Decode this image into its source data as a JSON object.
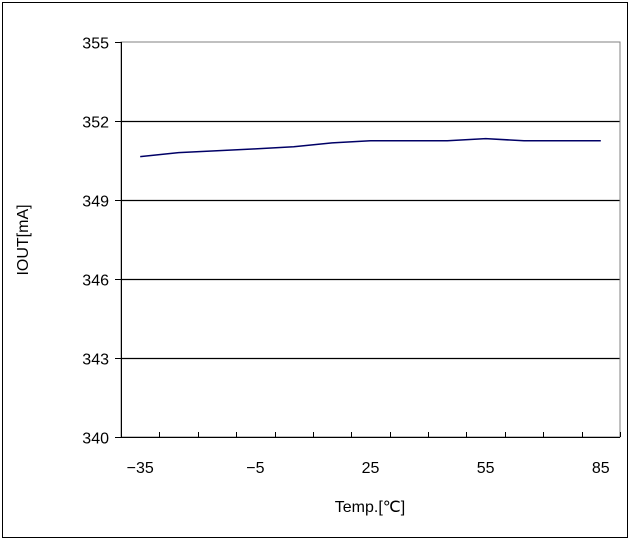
{
  "chart_data": {
    "type": "line",
    "title": "",
    "xlabel": "Temp.[℃]",
    "ylabel": "IOUT[mA]",
    "xlim": [
      -40,
      90
    ],
    "ylim": [
      340,
      355
    ],
    "xticks": [
      -35,
      -5,
      25,
      55,
      85
    ],
    "xtick_labels": [
      "−35",
      "−5",
      "25",
      "55",
      "85"
    ],
    "yticks": [
      340,
      343,
      346,
      349,
      352,
      355
    ],
    "grid": true,
    "legend": "none",
    "colors": {
      "line": "#000066",
      "grid": "#000000",
      "plot_border": "#808080"
    },
    "series": [
      {
        "x": [
          -35,
          -25,
          -15,
          -5,
          5,
          15,
          25,
          35,
          45,
          55,
          65,
          75,
          85
        ],
        "values": [
          350.65,
          350.8,
          350.87,
          350.94,
          351.02,
          351.17,
          351.25,
          351.25,
          351.25,
          351.33,
          351.25,
          351.25,
          351.25
        ]
      }
    ]
  }
}
